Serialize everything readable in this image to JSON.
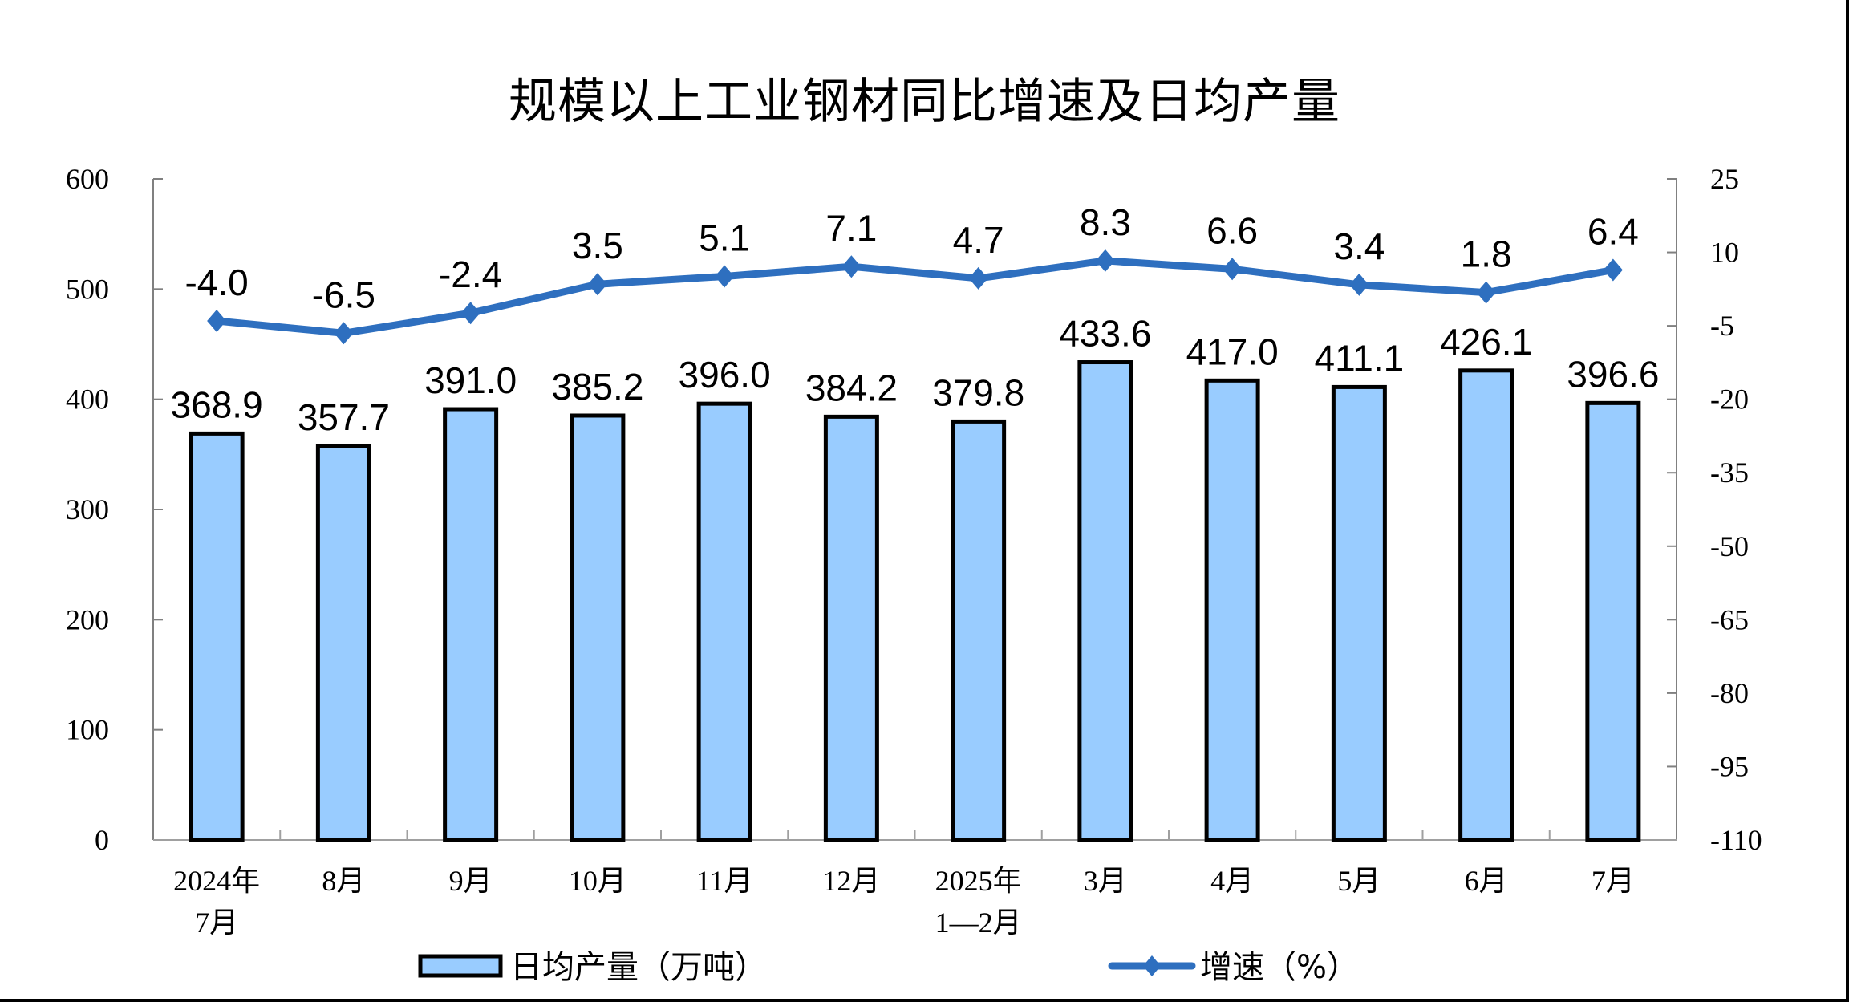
{
  "title": "规模以上工业钢材同比增速及日均产量",
  "colors": {
    "bar_fill": "#99CCFF",
    "bar_stroke": "#000000",
    "line": "#2E6FBF"
  },
  "chart_data": {
    "type": "bar+line",
    "title": "规模以上工业钢材同比增速及日均产量",
    "categories": [
      "2024年\n7月",
      "8月",
      "9月",
      "10月",
      "11月",
      "12月",
      "2025年\n1—2月",
      "3月",
      "4月",
      "5月",
      "6月",
      "7月"
    ],
    "category_lines": [
      [
        "2024年",
        "7月"
      ],
      [
        "8月"
      ],
      [
        "9月"
      ],
      [
        "10月"
      ],
      [
        "11月"
      ],
      [
        "12月"
      ],
      [
        "2025年",
        "1—2月"
      ],
      [
        "3月"
      ],
      [
        "4月"
      ],
      [
        "5月"
      ],
      [
        "6月"
      ],
      [
        "7月"
      ]
    ],
    "series": [
      {
        "name": "日均产量（万吨）",
        "type": "bar",
        "axis": "left",
        "values": [
          368.9,
          357.7,
          391.0,
          385.2,
          396.0,
          384.2,
          379.8,
          433.6,
          417.0,
          411.1,
          426.1,
          396.6
        ],
        "labels": [
          "368.9",
          "357.7",
          "391.0",
          "385.2",
          "396.0",
          "384.2",
          "379.8",
          "433.6",
          "417.0",
          "411.1",
          "426.1",
          "396.6"
        ]
      },
      {
        "name": "增速（%）",
        "type": "line",
        "axis": "right",
        "values": [
          -4.0,
          -6.5,
          -2.4,
          3.5,
          5.1,
          7.1,
          4.7,
          8.3,
          6.6,
          3.4,
          1.8,
          6.4
        ],
        "labels": [
          "-4.0",
          "-6.5",
          "-2.4",
          "3.5",
          "5.1",
          "7.1",
          "4.7",
          "8.3",
          "6.6",
          "3.4",
          "1.8",
          "6.4"
        ]
      }
    ],
    "left_axis": {
      "ylim": [
        0,
        600
      ],
      "ticks": [
        0,
        100,
        200,
        300,
        400,
        500,
        600
      ]
    },
    "right_axis": {
      "ylim": [
        -110,
        25
      ],
      "ticks": [
        25,
        10,
        -5,
        -20,
        -35,
        -50,
        -65,
        -80,
        -95,
        -110
      ]
    },
    "xlabel": "",
    "ylabel": "",
    "grid": false,
    "legend_position": "bottom"
  },
  "legend": {
    "bar_label": "日均产量（万吨）",
    "line_label": "增速（%）"
  }
}
